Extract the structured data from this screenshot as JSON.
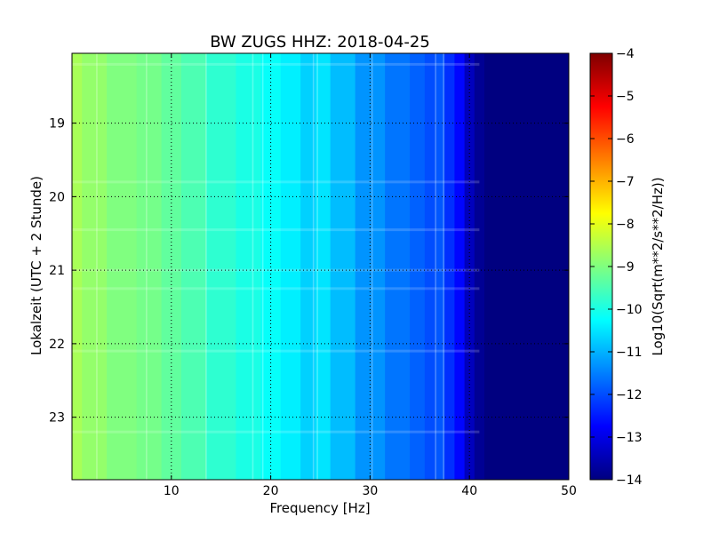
{
  "chart_data": {
    "type": "heatmap",
    "title": "BW ZUGS HHZ: 2018-04-25",
    "xlabel": "Frequency [Hz]",
    "ylabel": "Lokalzeit (UTC + 2 Stunde)",
    "xlim": [
      0,
      50
    ],
    "ylim": [
      18.05,
      23.85
    ],
    "y_inverted": true,
    "grid": true,
    "x_ticks": [
      10,
      20,
      30,
      40,
      50
    ],
    "y_ticks": [
      19,
      20,
      21,
      22,
      23
    ],
    "colormap": "jet",
    "colorbar": {
      "label": "Log10(Sqrt(m**2/s**2/Hz))",
      "min": -14,
      "max": -4,
      "ticks": [
        -14,
        -13,
        -12,
        -11,
        -10,
        -9,
        -8,
        -7,
        -6,
        -5,
        -4
      ]
    },
    "spectrum_profile": {
      "frequency_hz": [
        0,
        2,
        5,
        8,
        10,
        12,
        15,
        18,
        20,
        22,
        24,
        25,
        27,
        30,
        33,
        35,
        36,
        37,
        38,
        39,
        40,
        41,
        42,
        45,
        50
      ],
      "log10_amplitude": [
        -8.6,
        -8.8,
        -9.0,
        -9.1,
        -9.3,
        -9.5,
        -9.8,
        -10.0,
        -10.2,
        -10.4,
        -10.7,
        -10.5,
        -10.9,
        -11.3,
        -11.6,
        -11.8,
        -12.0,
        -11.9,
        -12.3,
        -12.7,
        -13.4,
        -13.8,
        -14.0,
        -14.0,
        -14.0
      ]
    },
    "line_features_hz": [
      2.5,
      7.5,
      13.5,
      18.2,
      19.2,
      24.3,
      24.7,
      30.2,
      36.6,
      37.4
    ],
    "time_bands_hour": [
      18.2,
      19.8,
      20.45,
      21.0,
      21.25,
      22.1,
      23.2
    ]
  }
}
